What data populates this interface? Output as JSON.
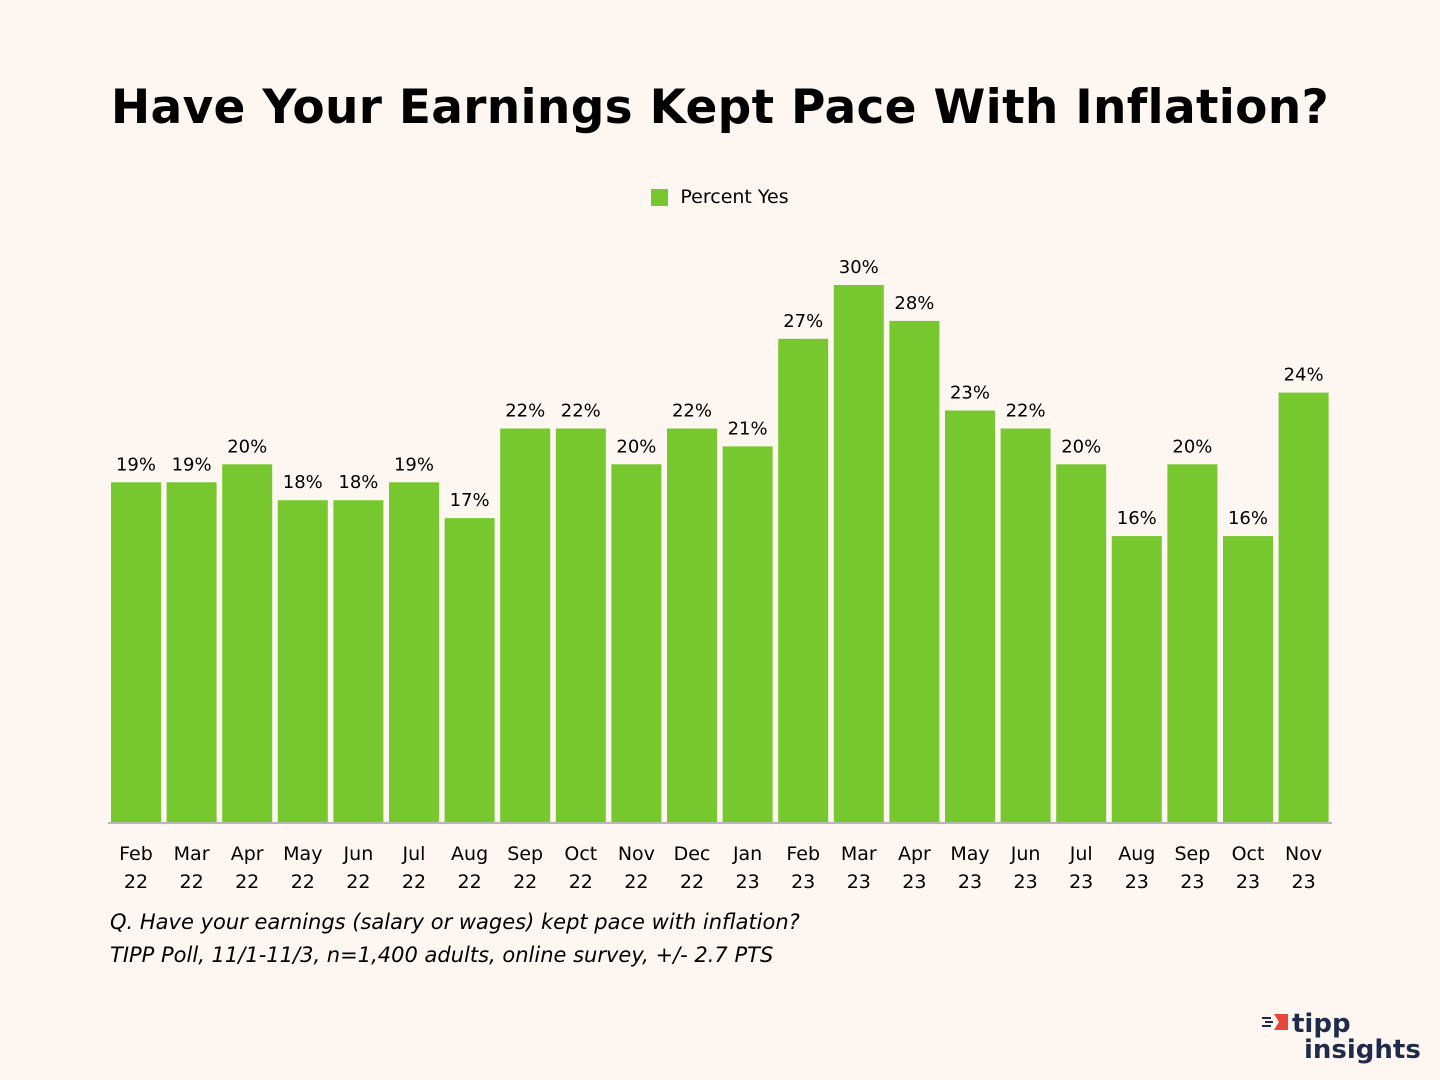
{
  "chart_data": {
    "type": "bar",
    "title": "Have Your Earnings Kept Pace With Inflation?",
    "legend": "Percent Yes",
    "legend_position": "top-center",
    "categories": [
      [
        "Feb",
        "22"
      ],
      [
        "Mar",
        "22"
      ],
      [
        "Apr",
        "22"
      ],
      [
        "May",
        "22"
      ],
      [
        "Jun",
        "22"
      ],
      [
        "Jul",
        "22"
      ],
      [
        "Aug",
        "22"
      ],
      [
        "Sep",
        "22"
      ],
      [
        "Oct",
        "22"
      ],
      [
        "Nov",
        "22"
      ],
      [
        "Dec",
        "22"
      ],
      [
        "Jan",
        "23"
      ],
      [
        "Feb",
        "23"
      ],
      [
        "Mar",
        "23"
      ],
      [
        "Apr",
        "23"
      ],
      [
        "May",
        "23"
      ],
      [
        "Jun",
        "23"
      ],
      [
        "Jul",
        "23"
      ],
      [
        "Aug",
        "23"
      ],
      [
        "Sep",
        "23"
      ],
      [
        "Oct",
        "23"
      ],
      [
        "Nov",
        "23"
      ]
    ],
    "values": [
      19,
      19,
      20,
      18,
      18,
      19,
      17,
      22,
      22,
      20,
      22,
      21,
      27,
      30,
      28,
      23,
      22,
      20,
      16,
      20,
      16,
      24
    ],
    "value_suffix": "%",
    "ylim": [
      0,
      30
    ],
    "grid": false,
    "bar_color": "#77c82e",
    "xlabel": "",
    "ylabel": ""
  },
  "footnote": {
    "line1": "Q. Have your earnings (salary or wages) kept pace with inflation?",
    "line2": "TIPP Poll, 11/1-11/3, n=1,400 adults, online survey, +/- 2.7 PTS"
  },
  "logo": {
    "word1": "tipp",
    "word2": "insights",
    "accent_color": "#e8463a",
    "text_color": "#1e2b4a"
  }
}
